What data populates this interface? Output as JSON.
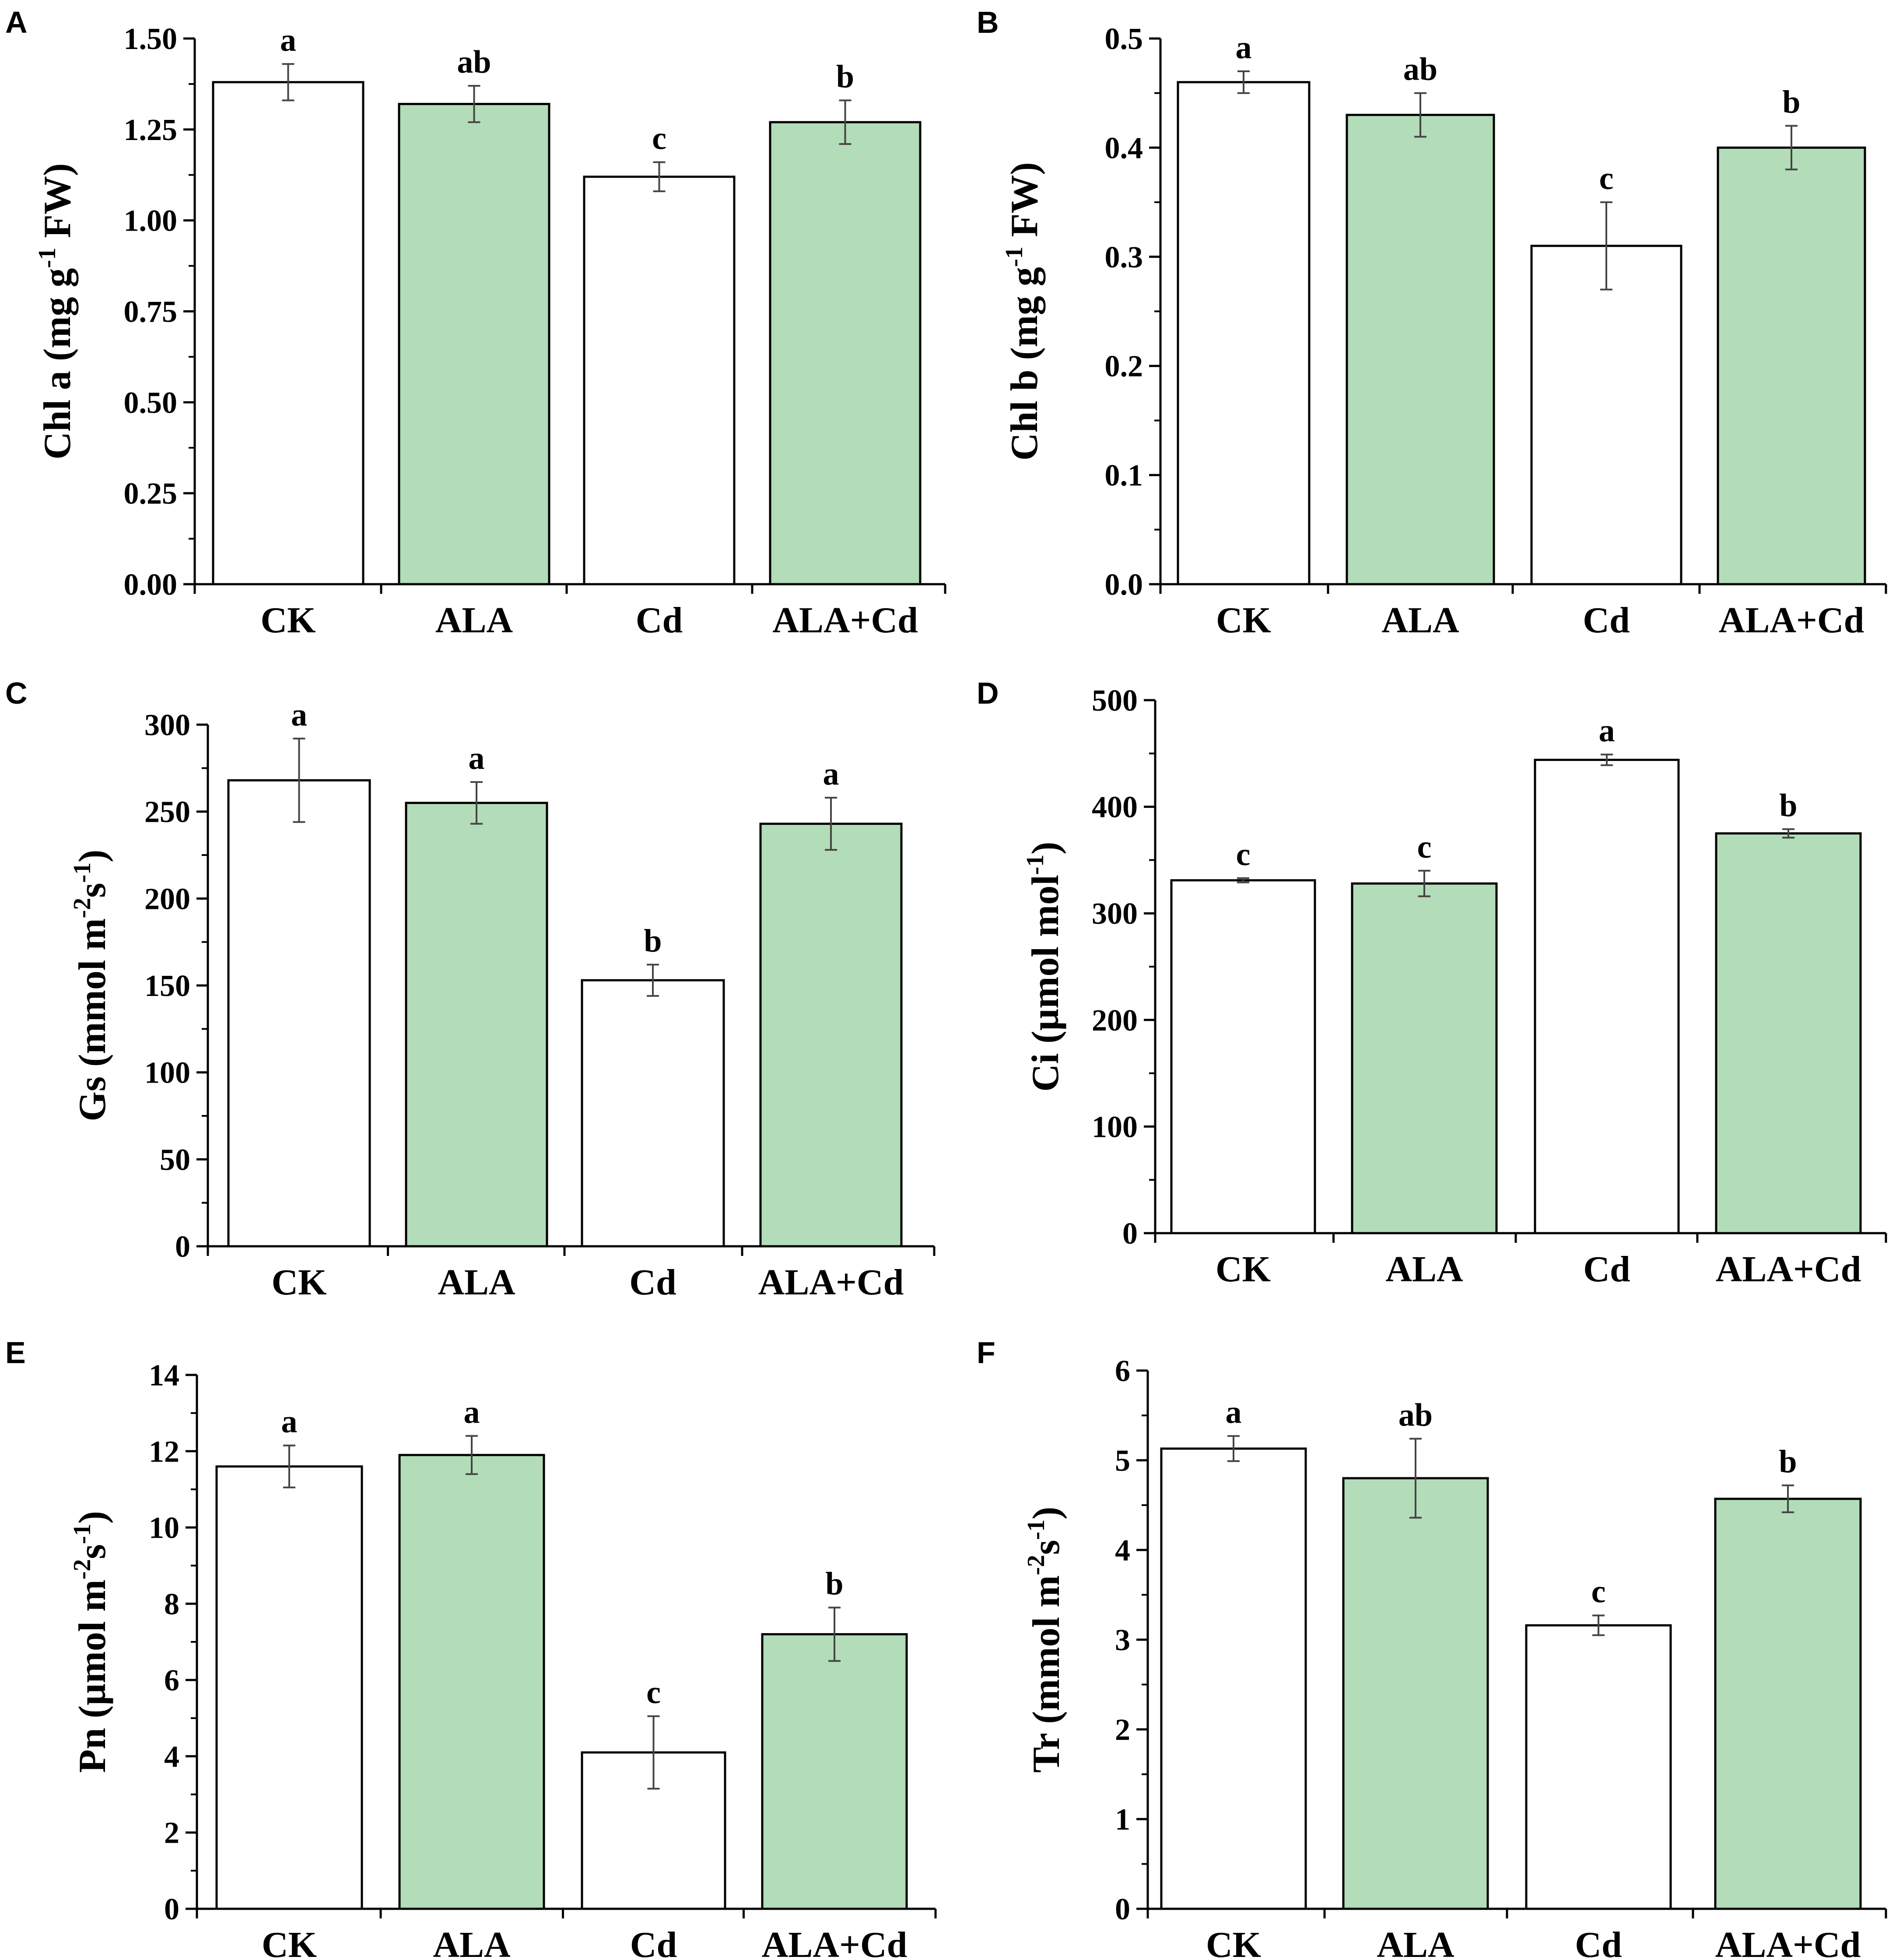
{
  "colors": {
    "bar_white": "#ffffff",
    "bar_green": "#b3dcb8",
    "axis": "#000000"
  },
  "chart_data": [
    {
      "panel": "A",
      "type": "bar",
      "categories": [
        "CK",
        "ALA",
        "Cd",
        "ALA+Cd"
      ],
      "values": [
        1.38,
        1.32,
        1.12,
        1.27
      ],
      "errors": [
        0.05,
        0.05,
        0.04,
        0.06
      ],
      "significance": [
        "a",
        "ab",
        "c",
        "b"
      ],
      "ylabel": {
        "pre": "Chl a (mg g",
        "sup": "-1",
        "post": " FW)"
      },
      "ylim": [
        0,
        1.5
      ],
      "yticks": [
        "0.00",
        "0.25",
        "0.50",
        "0.75",
        "1.00",
        "1.25",
        "1.50"
      ],
      "ytick_values": [
        0,
        0.25,
        0.5,
        0.75,
        1.0,
        1.25,
        1.5
      ]
    },
    {
      "panel": "B",
      "type": "bar",
      "categories": [
        "CK",
        "ALA",
        "Cd",
        "ALA+Cd"
      ],
      "values": [
        0.46,
        0.43,
        0.31,
        0.4
      ],
      "errors": [
        0.01,
        0.02,
        0.04,
        0.02
      ],
      "significance": [
        "a",
        "ab",
        "c",
        "b"
      ],
      "ylabel": {
        "pre": "Chl b (mg g",
        "sup": "-1",
        "post": " FW)"
      },
      "ylim": [
        0,
        0.5
      ],
      "yticks": [
        "0.0",
        "0.1",
        "0.2",
        "0.3",
        "0.4",
        "0.5"
      ],
      "ytick_values": [
        0,
        0.1,
        0.2,
        0.3,
        0.4,
        0.5
      ]
    },
    {
      "panel": "C",
      "type": "bar",
      "categories": [
        "CK",
        "ALA",
        "Cd",
        "ALA+Cd"
      ],
      "values": [
        268,
        255,
        153,
        243
      ],
      "errors": [
        24,
        12,
        9,
        15
      ],
      "significance": [
        "a",
        "a",
        "b",
        "a"
      ],
      "ylabel": {
        "pre": "Gs (mmol m",
        "sup": "-2",
        "mid": "s",
        "sup2": "-1",
        "post": ")"
      },
      "ylim": [
        0,
        300
      ],
      "yticks": [
        "0",
        "50",
        "100",
        "150",
        "200",
        "250",
        "300"
      ],
      "ytick_values": [
        0,
        50,
        100,
        150,
        200,
        250,
        300
      ]
    },
    {
      "panel": "D",
      "type": "bar",
      "categories": [
        "CK",
        "ALA",
        "Cd",
        "ALA+Cd"
      ],
      "values": [
        331,
        328,
        444,
        375
      ],
      "errors": [
        2,
        12,
        5,
        4
      ],
      "significance": [
        "c",
        "c",
        "a",
        "b"
      ],
      "ylabel": {
        "pre": "Ci (µmol mol",
        "sup": "-1",
        "post": ")"
      },
      "ylim": [
        0,
        500
      ],
      "yticks": [
        "0",
        "100",
        "200",
        "300",
        "400",
        "500"
      ],
      "ytick_values": [
        0,
        100,
        200,
        300,
        400,
        500
      ]
    },
    {
      "panel": "E",
      "type": "bar",
      "categories": [
        "CK",
        "ALA",
        "Cd",
        "ALA+Cd"
      ],
      "values": [
        11.6,
        11.9,
        4.1,
        7.2
      ],
      "errors": [
        0.55,
        0.5,
        0.95,
        0.7
      ],
      "significance": [
        "a",
        "a",
        "c",
        "b"
      ],
      "ylabel": {
        "pre": "Pn (µmol m",
        "sup": "-2",
        "mid": "s",
        "sup2": "-1",
        "post": ")"
      },
      "ylim": [
        0,
        14
      ],
      "yticks": [
        "0",
        "2",
        "4",
        "6",
        "8",
        "10",
        "12",
        "14"
      ],
      "ytick_values": [
        0,
        2,
        4,
        6,
        8,
        10,
        12,
        14
      ]
    },
    {
      "panel": "F",
      "type": "bar",
      "categories": [
        "CK",
        "ALA",
        "Cd",
        "ALA+Cd"
      ],
      "values": [
        5.13,
        4.8,
        3.16,
        4.57
      ],
      "errors": [
        0.14,
        0.44,
        0.11,
        0.15
      ],
      "significance": [
        "a",
        "ab",
        "c",
        "b"
      ],
      "ylabel": {
        "pre": "Tr (mmol m",
        "sup": "-2",
        "mid": "s",
        "sup2": "-1",
        "post": ")"
      },
      "ylim": [
        0,
        6
      ],
      "yticks": [
        "0",
        "1",
        "2",
        "3",
        "4",
        "5",
        "6"
      ],
      "ytick_values": [
        0,
        1,
        2,
        3,
        4,
        5,
        6
      ]
    }
  ]
}
